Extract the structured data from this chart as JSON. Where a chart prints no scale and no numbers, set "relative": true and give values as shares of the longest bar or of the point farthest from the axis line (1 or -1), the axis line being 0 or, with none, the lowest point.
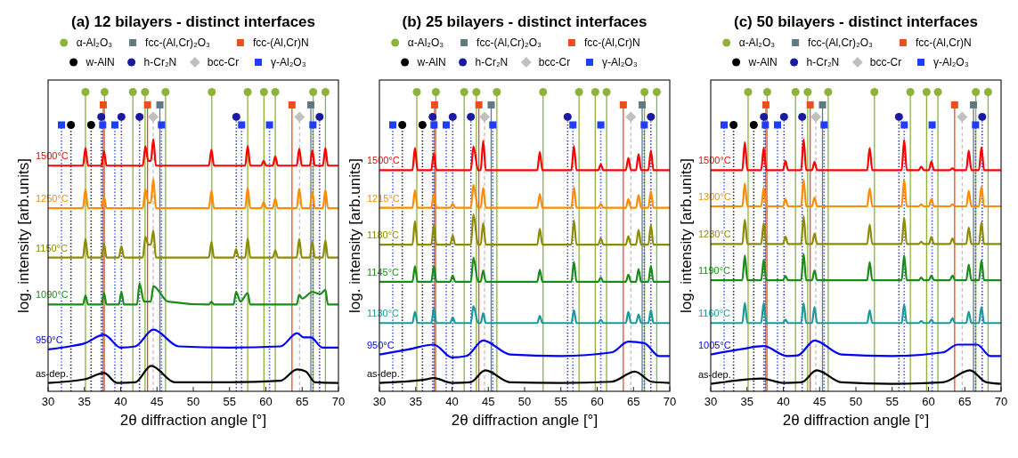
{
  "chart_data": [
    {
      "type": "line",
      "title": "(a) 12 bilayers - distinct interfaces",
      "xlabel": "2θ diffraction angle [°]",
      "ylabel": "log. intensity [arb.units]",
      "relative": true,
      "xlim": [
        30,
        70
      ],
      "xticks": [
        30,
        35,
        40,
        45,
        50,
        55,
        60,
        65,
        70
      ],
      "legend": "top",
      "series": [
        {
          "name": "α-Al₂O₃",
          "type": "lollipop",
          "color": "#8db33a",
          "marker": "circle",
          "line_style": "solid",
          "x": [
            35.15,
            37.78,
            41.68,
            43.36,
            46.18,
            52.55,
            57.5,
            59.74,
            61.3,
            66.52,
            68.21
          ],
          "values": [
            1,
            1,
            1,
            1,
            1,
            1,
            1,
            1,
            1,
            1,
            1
          ]
        },
        {
          "name": "fcc-(Al,Cr)₂O₃",
          "type": "lollipop",
          "color": "#5f7a80",
          "marker": "square",
          "line_style": "solid",
          "x": [
            45.4,
            66.2
          ],
          "values": [
            0.957,
            0.957
          ]
        },
        {
          "name": "fcc-(Al,Cr)N",
          "type": "lollipop",
          "color": "#ec4f1c",
          "marker": "square",
          "line_style": "solid",
          "x": [
            37.6,
            43.7,
            63.6
          ],
          "values": [
            0.957,
            0.957,
            0.957
          ]
        },
        {
          "name": "w-AlN",
          "type": "lollipop",
          "color": "#000000",
          "marker": "circle",
          "line_style": "dotted",
          "x": [
            33.15,
            35.93
          ],
          "values": [
            0.89,
            0.89
          ]
        },
        {
          "name": "h-Cr₂N",
          "type": "lollipop",
          "color": "#1a1aa0",
          "marker": "circle",
          "line_style": "dotted",
          "x": [
            37.33,
            40.1,
            42.6,
            55.93,
            67.4
          ],
          "values": [
            0.917,
            0.917,
            0.917,
            0.917,
            0.917
          ]
        },
        {
          "name": "bcc-Cr",
          "type": "lollipop",
          "color": "#c0c0c0",
          "marker": "diamond",
          "line_style": "dashed",
          "x": [
            44.48,
            64.64
          ],
          "values": [
            0.917,
            0.917
          ]
        },
        {
          "name": "γ-Al₂O₃",
          "type": "lollipop",
          "color": "#1f3cff",
          "marker": "square",
          "line_style": "dotted",
          "x": [
            31.84,
            37.52,
            39.2,
            45.62,
            56.66,
            60.5,
            66.48
          ],
          "values": [
            0.89,
            0.89,
            0.89,
            0.89,
            0.89,
            0.89,
            0.89
          ]
        },
        {
          "name": "1500°C",
          "color": "#ff0000",
          "x": [
            30,
            34.8,
            35.15,
            35.5,
            37.35,
            37.7,
            38.05,
            43.05,
            43.4,
            43.8,
            44.15,
            44.5,
            44.85,
            52.15,
            52.5,
            52.85,
            57.15,
            57.5,
            57.85,
            59.35,
            59.7,
            60.05,
            60.95,
            61.3,
            61.65,
            64.25,
            64.6,
            64.95,
            66.05,
            66.4,
            66.75,
            67.85,
            68.2,
            68.55,
            70
          ],
          "values": [
            0.754,
            0.754,
            0.813,
            0.754,
            0.754,
            0.802,
            0.754,
            0.754,
            0.818,
            0.77,
            0.77,
            0.842,
            0.754,
            0.754,
            0.807,
            0.754,
            0.754,
            0.82,
            0.754,
            0.754,
            0.77,
            0.754,
            0.754,
            0.785,
            0.754,
            0.754,
            0.81,
            0.754,
            0.754,
            0.804,
            0.754,
            0.754,
            0.813,
            0.754,
            0.754
          ]
        },
        {
          "name": "1250°C",
          "color": "#ff8c00",
          "x": [
            30,
            34.8,
            35.15,
            35.5,
            37.35,
            37.7,
            38.05,
            43.05,
            43.4,
            43.8,
            44.15,
            44.5,
            44.85,
            52.15,
            52.5,
            52.85,
            57.15,
            57.5,
            57.85,
            59.35,
            59.7,
            60.05,
            60.95,
            61.3,
            61.65,
            64.25,
            64.6,
            64.95,
            66.05,
            66.4,
            66.75,
            67.85,
            68.2,
            68.55,
            70
          ],
          "values": [
            0.612,
            0.612,
            0.675,
            0.612,
            0.612,
            0.651,
            0.612,
            0.612,
            0.675,
            0.63,
            0.63,
            0.709,
            0.612,
            0.612,
            0.67,
            0.612,
            0.612,
            0.68,
            0.612,
            0.612,
            0.632,
            0.612,
            0.612,
            0.644,
            0.612,
            0.612,
            0.677,
            0.612,
            0.612,
            0.666,
            0.612,
            0.612,
            0.672,
            0.612,
            0.612
          ]
        },
        {
          "name": "1150°C",
          "color": "#8c8c00",
          "x": [
            30,
            34.8,
            35.15,
            35.5,
            37.35,
            37.7,
            38.05,
            39.75,
            40.1,
            40.45,
            43.05,
            43.4,
            43.8,
            44.15,
            44.5,
            44.85,
            52.15,
            52.5,
            52.85,
            55.55,
            55.9,
            56.25,
            57.15,
            57.5,
            57.85,
            60.95,
            61.3,
            61.65,
            64.25,
            64.6,
            64.95,
            66.05,
            66.4,
            66.75,
            67.85,
            68.2,
            68.55,
            70
          ],
          "values": [
            0.447,
            0.447,
            0.509,
            0.447,
            0.447,
            0.492,
            0.447,
            0.447,
            0.485,
            0.447,
            0.447,
            0.516,
            0.49,
            0.49,
            0.537,
            0.447,
            0.447,
            0.499,
            0.447,
            0.447,
            0.475,
            0.447,
            0.447,
            0.511,
            0.447,
            0.447,
            0.471,
            0.447,
            0.447,
            0.509,
            0.447,
            0.447,
            0.499,
            0.447,
            0.447,
            0.504,
            0.447,
            0.447
          ]
        },
        {
          "name": "1090°C",
          "color": "#1a8c1a",
          "x": [
            30,
            34.8,
            35.15,
            35.5,
            37.35,
            37.7,
            38.05,
            39.75,
            40.1,
            40.45,
            42.25,
            42.6,
            43.2,
            44.15,
            44.5,
            46.5,
            52.15,
            52.5,
            52.85,
            55.55,
            55.9,
            56.5,
            57.5,
            57.85,
            64.25,
            64.6,
            65,
            66.4,
            67.5,
            68.2,
            68.55,
            70
          ],
          "values": [
            0.29,
            0.29,
            0.32,
            0.29,
            0.29,
            0.328,
            0.29,
            0.29,
            0.332,
            0.29,
            0.29,
            0.361,
            0.3,
            0.3,
            0.351,
            0.3,
            0.29,
            0.299,
            0.29,
            0.29,
            0.332,
            0.3,
            0.328,
            0.29,
            0.29,
            0.323,
            0.31,
            0.332,
            0.325,
            0.339,
            0.29,
            0.29
          ]
        },
        {
          "name": "950°C",
          "color": "#0000ff",
          "x": [
            30,
            33,
            35,
            37.7,
            40,
            42,
            44.5,
            48,
            55,
            62,
            64.3,
            65.2,
            66.2,
            67.8,
            70
          ],
          "values": [
            0.14,
            0.15,
            0.16,
            0.189,
            0.146,
            0.15,
            0.206,
            0.15,
            0.146,
            0.15,
            0.194,
            0.18,
            0.18,
            0.146,
            0.146
          ]
        },
        {
          "name": "as-dep.",
          "color": "#000000",
          "x": [
            30,
            35,
            37.7,
            39.5,
            42,
            44.2,
            47.5,
            55,
            62,
            64.3,
            65.5,
            66.8,
            70
          ],
          "values": [
            0.028,
            0.04,
            0.061,
            0.028,
            0.03,
            0.085,
            0.03,
            0.03,
            0.035,
            0.073,
            0.066,
            0.03,
            0.028
          ]
        }
      ]
    },
    {
      "type": "line",
      "title": "(b) 25 bilayers - distinct interfaces",
      "xlabel": "2θ diffraction angle [°]",
      "ylabel": "log. intensity [arb.units]",
      "relative": true,
      "xlim": [
        30,
        70
      ],
      "xticks": [
        30,
        35,
        40,
        45,
        50,
        55,
        60,
        65,
        70
      ],
      "legend": "top",
      "series": [
        {
          "name": "α-Al₂O₃",
          "type": "lollipop",
          "color": "#8db33a",
          "marker": "circle",
          "line_style": "solid",
          "x": [
            35.15,
            37.78,
            41.68,
            43.36,
            46.18,
            52.55,
            57.5,
            59.74,
            61.3,
            66.52,
            68.21
          ],
          "values": [
            1,
            1,
            1,
            1,
            1,
            1,
            1,
            1,
            1,
            1,
            1
          ]
        },
        {
          "name": "fcc-(Al,Cr)₂O₃",
          "type": "lollipop",
          "color": "#5f7a80",
          "marker": "square",
          "line_style": "solid",
          "x": [
            45.4,
            66.2
          ],
          "values": [
            0.957,
            0.957
          ]
        },
        {
          "name": "fcc-(Al,Cr)N",
          "type": "lollipop",
          "color": "#ec4f1c",
          "marker": "square",
          "line_style": "solid",
          "x": [
            37.6,
            43.7,
            63.6
          ],
          "values": [
            0.957,
            0.957,
            0.957
          ]
        },
        {
          "name": "w-AlN",
          "type": "lollipop",
          "color": "#000000",
          "marker": "circle",
          "line_style": "dotted",
          "x": [
            33.15,
            35.93
          ],
          "values": [
            0.89,
            0.89
          ]
        },
        {
          "name": "h-Cr₂N",
          "type": "lollipop",
          "color": "#1a1aa0",
          "marker": "circle",
          "line_style": "dotted",
          "x": [
            37.33,
            40.1,
            42.6,
            55.93,
            67.4
          ],
          "values": [
            0.917,
            0.917,
            0.917,
            0.917,
            0.917
          ]
        },
        {
          "name": "bcc-Cr",
          "type": "lollipop",
          "color": "#c0c0c0",
          "marker": "diamond",
          "line_style": "dashed",
          "x": [
            44.48,
            64.64
          ],
          "values": [
            0.917,
            0.917
          ]
        },
        {
          "name": "γ-Al₂O₃",
          "type": "lollipop",
          "color": "#1f3cff",
          "marker": "square",
          "line_style": "dotted",
          "x": [
            31.84,
            37.52,
            39.2,
            45.62,
            56.66,
            60.5,
            66.48
          ],
          "values": [
            0.89,
            0.89,
            0.89,
            0.89,
            0.89,
            0.89,
            0.89
          ]
        },
        {
          "name": "1500°C",
          "color": "#ff0000",
          "x": [
            30,
            34.55,
            34.9,
            35.25,
            37.15,
            37.5,
            37.85,
            42.6,
            42.95,
            43.6,
            43.95,
            44.3,
            44.65,
            51.75,
            52.1,
            52.45,
            56.45,
            56.8,
            57.15,
            60.15,
            60.5,
            60.85,
            63.95,
            64.3,
            64.65,
            65.35,
            65.7,
            66.05,
            67.05,
            67.4,
            67.75,
            70
          ],
          "values": [
            0.739,
            0.739,
            0.813,
            0.739,
            0.739,
            0.796,
            0.739,
            0.739,
            0.818,
            0.739,
            0.739,
            0.837,
            0.739,
            0.739,
            0.8,
            0.739,
            0.739,
            0.82,
            0.739,
            0.739,
            0.758,
            0.739,
            0.739,
            0.78,
            0.739,
            0.739,
            0.792,
            0.739,
            0.739,
            0.804,
            0.739,
            0.739
          ]
        },
        {
          "name": "1215°C",
          "color": "#ff8c00",
          "x": [
            30,
            34.55,
            34.9,
            35.25,
            37.15,
            37.5,
            37.85,
            39.75,
            40.1,
            40.45,
            42.6,
            42.95,
            43.6,
            43.95,
            44.3,
            44.65,
            51.75,
            52.1,
            52.45,
            56.45,
            56.8,
            57.15,
            60.15,
            60.5,
            60.85,
            63.95,
            64.3,
            64.65,
            65.35,
            65.7,
            66.05,
            67.05,
            67.4,
            67.75,
            70
          ],
          "values": [
            0.613,
            0.613,
            0.672,
            0.613,
            0.613,
            0.659,
            0.613,
            0.613,
            0.627,
            0.613,
            0.613,
            0.69,
            0.613,
            0.613,
            0.68,
            0.613,
            0.613,
            0.659,
            0.613,
            0.613,
            0.682,
            0.613,
            0.613,
            0.627,
            0.613,
            0.613,
            0.642,
            0.613,
            0.613,
            0.656,
            0.613,
            0.613,
            0.668,
            0.613,
            0.613
          ]
        },
        {
          "name": "1180°C",
          "color": "#8c8c00",
          "x": [
            30,
            34.55,
            34.9,
            35.25,
            37.15,
            37.5,
            37.85,
            39.75,
            40.1,
            40.45,
            42.6,
            42.95,
            43.6,
            43.95,
            44.3,
            44.65,
            51.75,
            52.1,
            52.45,
            56.45,
            56.8,
            57.15,
            60.15,
            60.5,
            60.85,
            63.95,
            64.3,
            64.65,
            65.35,
            65.7,
            66.05,
            67.05,
            67.4,
            67.75,
            70
          ],
          "values": [
            0.49,
            0.49,
            0.569,
            0.49,
            0.49,
            0.555,
            0.49,
            0.49,
            0.521,
            0.49,
            0.49,
            0.591,
            0.49,
            0.49,
            0.562,
            0.49,
            0.49,
            0.543,
            0.49,
            0.49,
            0.571,
            0.49,
            0.49,
            0.511,
            0.49,
            0.49,
            0.518,
            0.49,
            0.49,
            0.539,
            0.49,
            0.49,
            0.555,
            0.49,
            0.49
          ]
        },
        {
          "name": "1145°C",
          "color": "#1a8c1a",
          "x": [
            30,
            34.55,
            34.9,
            35.25,
            37.15,
            37.5,
            37.85,
            39.75,
            40.1,
            40.45,
            42.6,
            42.95,
            43.6,
            43.95,
            44.3,
            44.65,
            51.75,
            52.1,
            52.45,
            56.45,
            56.8,
            57.15,
            60.15,
            60.5,
            60.85,
            63.95,
            64.3,
            64.65,
            65.35,
            65.7,
            66.05,
            67.05,
            67.4,
            67.75,
            70
          ],
          "values": [
            0.366,
            0.366,
            0.418,
            0.366,
            0.366,
            0.418,
            0.366,
            0.366,
            0.387,
            0.366,
            0.366,
            0.447,
            0.366,
            0.366,
            0.404,
            0.366,
            0.366,
            0.406,
            0.366,
            0.366,
            0.432,
            0.366,
            0.366,
            0.38,
            0.366,
            0.366,
            0.39,
            0.366,
            0.366,
            0.408,
            0.366,
            0.366,
            0.419,
            0.366,
            0.366
          ]
        },
        {
          "name": "1130°C",
          "color": "#1a9a9a",
          "x": [
            30,
            34.55,
            34.9,
            35.25,
            37.15,
            37.5,
            37.85,
            39.75,
            40.1,
            40.45,
            42.6,
            42.95,
            43.6,
            43.95,
            44.3,
            44.65,
            51.75,
            52.1,
            52.45,
            56.45,
            56.8,
            57.15,
            60.15,
            60.5,
            60.85,
            63.95,
            64.3,
            64.65,
            65.35,
            65.7,
            66.05,
            67.05,
            67.4,
            67.75,
            70
          ],
          "values": [
            0.228,
            0.228,
            0.266,
            0.228,
            0.228,
            0.275,
            0.228,
            0.228,
            0.247,
            0.228,
            0.228,
            0.285,
            0.228,
            0.228,
            0.261,
            0.228,
            0.228,
            0.252,
            0.228,
            0.228,
            0.271,
            0.228,
            0.228,
            0.24,
            0.228,
            0.228,
            0.266,
            0.228,
            0.228,
            0.257,
            0.228,
            0.228,
            0.271,
            0.228,
            0.228
          ]
        },
        {
          "name": "950°C",
          "color": "#0000ff",
          "x": [
            30,
            34,
            37.5,
            40,
            42,
            44.3,
            48,
            55,
            62,
            64.3,
            66.5,
            68.5,
            70
          ],
          "values": [
            0.123,
            0.14,
            0.156,
            0.113,
            0.118,
            0.17,
            0.123,
            0.118,
            0.13,
            0.166,
            0.161,
            0.118,
            0.118
          ]
        },
        {
          "name": "as-dep.",
          "color": "#000000",
          "x": [
            30,
            36,
            37.5,
            40,
            42.5,
            44.6,
            48,
            55,
            62,
            65.2,
            67.5,
            70
          ],
          "values": [
            0.028,
            0.038,
            0.044,
            0.028,
            0.03,
            0.07,
            0.03,
            0.028,
            0.032,
            0.066,
            0.032,
            0.028
          ]
        }
      ]
    },
    {
      "type": "line",
      "title": "(c) 50 bilayers - distinct interfaces",
      "xlabel": "2θ diffraction angle [°]",
      "ylabel": "log. intensity [arb.units]",
      "relative": true,
      "xlim": [
        30,
        70
      ],
      "xticks": [
        30,
        35,
        40,
        45,
        50,
        55,
        60,
        65,
        70
      ],
      "legend": "top",
      "series": [
        {
          "name": "α-Al₂O₃",
          "type": "lollipop",
          "color": "#8db33a",
          "marker": "circle",
          "line_style": "solid",
          "x": [
            35.15,
            37.78,
            41.68,
            43.36,
            46.18,
            52.55,
            57.5,
            59.74,
            61.3,
            66.52,
            68.21
          ],
          "values": [
            1,
            1,
            1,
            1,
            1,
            1,
            1,
            1,
            1,
            1,
            1
          ]
        },
        {
          "name": "fcc-(Al,Cr)₂O₃",
          "type": "lollipop",
          "color": "#5f7a80",
          "marker": "square",
          "line_style": "solid",
          "x": [
            45.4,
            66.2
          ],
          "values": [
            0.957,
            0.957
          ]
        },
        {
          "name": "fcc-(Al,Cr)N",
          "type": "lollipop",
          "color": "#ec4f1c",
          "marker": "square",
          "line_style": "solid",
          "x": [
            37.6,
            43.7,
            63.6
          ],
          "values": [
            0.957,
            0.957,
            0.957
          ]
        },
        {
          "name": "w-AlN",
          "type": "lollipop",
          "color": "#000000",
          "marker": "circle",
          "line_style": "dotted",
          "x": [
            33.15,
            35.93
          ],
          "values": [
            0.89,
            0.89
          ]
        },
        {
          "name": "h-Cr₂N",
          "type": "lollipop",
          "color": "#1a1aa0",
          "marker": "circle",
          "line_style": "dotted",
          "x": [
            37.33,
            40.1,
            42.6,
            55.93,
            67.4
          ],
          "values": [
            0.917,
            0.917,
            0.917,
            0.917,
            0.917
          ]
        },
        {
          "name": "bcc-Cr",
          "type": "lollipop",
          "color": "#c0c0c0",
          "marker": "diamond",
          "line_style": "dashed",
          "x": [
            44.48,
            64.64
          ],
          "values": [
            0.917,
            0.917
          ]
        },
        {
          "name": "γ-Al₂O₃",
          "type": "lollipop",
          "color": "#1f3cff",
          "marker": "square",
          "line_style": "dotted",
          "x": [
            31.84,
            37.52,
            39.2,
            45.62,
            56.66,
            60.5,
            66.48
          ],
          "values": [
            0.89,
            0.89,
            0.89,
            0.89,
            0.89,
            0.89,
            0.89
          ]
        },
        {
          "name": "1500°C",
          "color": "#ff0000",
          "x": [
            30,
            34.35,
            34.7,
            35.05,
            36.95,
            37.3,
            37.65,
            39.95,
            40.3,
            40.65,
            42.45,
            42.8,
            43.15,
            43.95,
            44.3,
            44.65,
            51.55,
            51.9,
            52.25,
            56.3,
            56.65,
            57,
            58.65,
            59,
            59.35,
            60.05,
            60.4,
            60.75,
            62.95,
            63.3,
            63.65,
            65.2,
            65.55,
            65.9,
            66.95,
            67.3,
            67.65,
            70
          ],
          "values": [
            0.739,
            0.739,
            0.832,
            0.739,
            0.739,
            0.813,
            0.739,
            0.739,
            0.77,
            0.739,
            0.739,
            0.842,
            0.739,
            0.739,
            0.766,
            0.739,
            0.739,
            0.813,
            0.739,
            0.739,
            0.84,
            0.739,
            0.739,
            0.751,
            0.739,
            0.739,
            0.768,
            0.739,
            0.739,
            0.745,
            0.739,
            0.739,
            0.804,
            0.739,
            0.739,
            0.815,
            0.739,
            0.739
          ]
        },
        {
          "name": "1300°C",
          "color": "#ff8c00",
          "x": [
            30,
            34.35,
            34.7,
            35.05,
            36.95,
            37.3,
            37.65,
            39.95,
            40.3,
            40.65,
            42.45,
            42.8,
            43.15,
            43.95,
            44.3,
            44.65,
            51.55,
            51.9,
            52.25,
            56.3,
            56.65,
            57,
            58.65,
            59,
            59.35,
            60.05,
            60.4,
            60.75,
            62.95,
            63.3,
            63.65,
            65.2,
            65.55,
            65.9,
            66.95,
            67.3,
            67.65,
            70
          ],
          "values": [
            0.618,
            0.618,
            0.694,
            0.618,
            0.618,
            0.68,
            0.618,
            0.618,
            0.642,
            0.618,
            0.618,
            0.707,
            0.618,
            0.618,
            0.647,
            0.618,
            0.618,
            0.678,
            0.618,
            0.618,
            0.707,
            0.618,
            0.618,
            0.625,
            0.618,
            0.618,
            0.642,
            0.618,
            0.618,
            0.625,
            0.618,
            0.618,
            0.67,
            0.618,
            0.618,
            0.684,
            0.618,
            0.618
          ]
        },
        {
          "name": "1230°C",
          "color": "#8c8c00",
          "x": [
            30,
            34.35,
            34.7,
            35.05,
            36.95,
            37.3,
            37.65,
            39.95,
            40.3,
            40.65,
            42.45,
            42.8,
            43.15,
            43.95,
            44.3,
            44.65,
            51.55,
            51.9,
            52.25,
            56.3,
            56.65,
            57,
            58.65,
            59,
            59.35,
            60.05,
            60.4,
            60.75,
            62.95,
            63.3,
            63.65,
            65.2,
            65.55,
            65.9,
            66.95,
            67.3,
            67.65,
            70
          ],
          "values": [
            0.492,
            0.492,
            0.574,
            0.492,
            0.492,
            0.561,
            0.492,
            0.492,
            0.517,
            0.492,
            0.492,
            0.585,
            0.492,
            0.492,
            0.527,
            0.492,
            0.492,
            0.557,
            0.492,
            0.492,
            0.58,
            0.492,
            0.492,
            0.5,
            0.492,
            0.492,
            0.516,
            0.492,
            0.492,
            0.511,
            0.492,
            0.492,
            0.547,
            0.492,
            0.492,
            0.564,
            0.492,
            0.492
          ]
        },
        {
          "name": "1190°C",
          "color": "#1a8c1a",
          "x": [
            30,
            34.35,
            34.7,
            35.05,
            36.95,
            37.3,
            37.65,
            39.95,
            40.3,
            40.65,
            42.45,
            42.8,
            43.15,
            43.95,
            44.3,
            44.65,
            51.55,
            51.9,
            52.25,
            56.3,
            56.65,
            57,
            58.65,
            59,
            59.35,
            60.05,
            60.4,
            60.75,
            62.95,
            63.3,
            63.65,
            65.2,
            65.55,
            65.9,
            66.95,
            67.3,
            67.65,
            70
          ],
          "values": [
            0.371,
            0.371,
            0.454,
            0.371,
            0.371,
            0.44,
            0.371,
            0.371,
            0.385,
            0.371,
            0.371,
            0.459,
            0.371,
            0.371,
            0.404,
            0.371,
            0.371,
            0.432,
            0.371,
            0.371,
            0.454,
            0.371,
            0.371,
            0.38,
            0.371,
            0.371,
            0.387,
            0.371,
            0.371,
            0.387,
            0.371,
            0.371,
            0.423,
            0.371,
            0.371,
            0.437,
            0.371,
            0.371
          ]
        },
        {
          "name": "1160°C",
          "color": "#1a9a9a",
          "x": [
            30,
            34.35,
            34.7,
            35.05,
            36.95,
            37.3,
            37.65,
            39.95,
            40.3,
            40.65,
            42.45,
            42.8,
            43.15,
            43.95,
            44.3,
            44.65,
            51.55,
            51.9,
            52.25,
            56.3,
            56.65,
            57,
            58.65,
            59,
            59.35,
            60.05,
            60.4,
            60.75,
            62.95,
            63.3,
            63.65,
            65.2,
            65.55,
            65.9,
            66.95,
            67.3,
            67.65,
            70
          ],
          "values": [
            0.228,
            0.228,
            0.295,
            0.228,
            0.228,
            0.295,
            0.228,
            0.228,
            0.24,
            0.228,
            0.228,
            0.294,
            0.228,
            0.228,
            0.282,
            0.228,
            0.228,
            0.271,
            0.228,
            0.228,
            0.29,
            0.228,
            0.228,
            0.235,
            0.228,
            0.228,
            0.24,
            0.228,
            0.228,
            0.245,
            0.228,
            0.228,
            0.266,
            0.228,
            0.228,
            0.282,
            0.228,
            0.228
          ]
        },
        {
          "name": "1005°C",
          "color": "#0000ff",
          "x": [
            30,
            34,
            37.3,
            40.5,
            42,
            44.3,
            48,
            55,
            62,
            64,
            66.7,
            68.5,
            70
          ],
          "values": [
            0.123,
            0.14,
            0.151,
            0.118,
            0.12,
            0.17,
            0.123,
            0.118,
            0.13,
            0.156,
            0.156,
            0.118,
            0.118
          ]
        },
        {
          "name": "as-dep.",
          "color": "#000000",
          "x": [
            30,
            35,
            37,
            40,
            42.5,
            44.6,
            48,
            55,
            62,
            65.7,
            68,
            70
          ],
          "values": [
            0.025,
            0.04,
            0.043,
            0.028,
            0.03,
            0.07,
            0.03,
            0.025,
            0.03,
            0.07,
            0.03,
            0.025
          ]
        }
      ]
    }
  ]
}
